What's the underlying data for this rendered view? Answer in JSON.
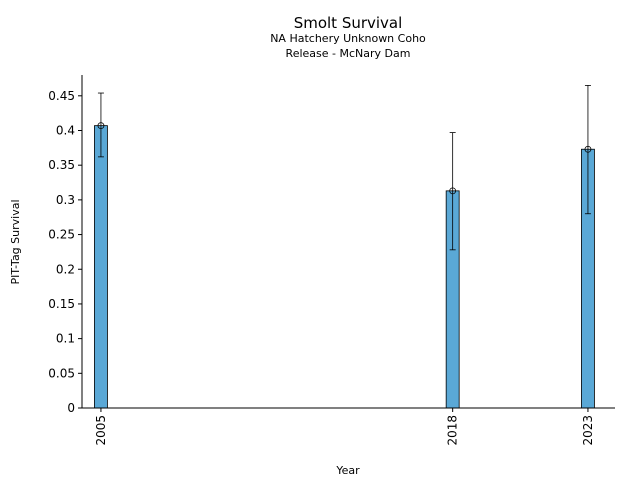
{
  "chart_data": {
    "type": "bar",
    "title": "Smolt Survival",
    "subtitle_lines": [
      "NA Hatchery Unknown Coho",
      "Release - McNary Dam"
    ],
    "xlabel": "Year",
    "ylabel": "PIT-Tag Survival",
    "x": [
      2005,
      2018,
      2023
    ],
    "x_tick_labels": [
      "2005",
      "2018",
      "2023"
    ],
    "values": [
      0.407,
      0.313,
      0.373
    ],
    "error_low": [
      0.362,
      0.228,
      0.28
    ],
    "error_high": [
      0.454,
      0.397,
      0.465
    ],
    "xlim": [
      2004.3,
      2024.0
    ],
    "ylim": [
      0,
      0.48
    ],
    "y_ticks": [
      0,
      0.05,
      0.1,
      0.15,
      0.2,
      0.25,
      0.3,
      0.35,
      0.4,
      0.45
    ],
    "y_tick_labels": [
      "0",
      "0.05",
      "0.1",
      "0.15",
      "0.2",
      "0.25",
      "0.3",
      "0.35",
      "0.4",
      "0.45"
    ],
    "bar_color": "#5aa8d6",
    "edge_color": "#000000",
    "grid": false,
    "legend": "none"
  }
}
